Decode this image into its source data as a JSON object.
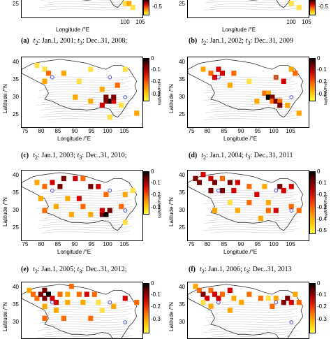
{
  "figure": {
    "xlabel": "Longitude /°E",
    "ylabel": "Latitude /°N",
    "colorbar_label": "log(MPi/MPref)",
    "top_strip_colorbar_ticks": [
      "-0.5"
    ],
    "top_strip_colorbar_ticks_right": [
      "-0.5"
    ],
    "colorbar_ticks_full": [
      "0",
      "-0.1",
      "-0.2",
      "-0.3",
      "-0.4",
      "-0.5"
    ],
    "colorbar_ticks_partial": [
      "0",
      "-0.1",
      "-0.2",
      "-0.3"
    ],
    "x_ticks": [
      "75",
      "80",
      "85",
      "90",
      "95",
      "100",
      "105"
    ],
    "y_ticks": [
      "40",
      "35",
      "30",
      "25"
    ],
    "y_ticks_partial": [
      "40",
      "35",
      "30"
    ],
    "top_y_tick": "25",
    "top_x_ticks": [
      "100",
      "105"
    ],
    "colors": {
      "dark": "#000000",
      "darkred": "#7a0000",
      "red": "#d40000",
      "orange": "#ff6a00",
      "yelloworange": "#ffa800",
      "yellow": "#ffe14a",
      "station": "#3a3ad0"
    }
  },
  "captions": [
    {
      "label": "(a)",
      "t2": "t",
      "t2sub": "2",
      "t2text": ": Jan.1, 2001;",
      "t3": "t",
      "t3sub": "3",
      "t3text": ": Dec..31, 2008;"
    },
    {
      "label": "(b)",
      "t2": "t",
      "t2sub": "2",
      "t2text": ": Jan.1, 2002;",
      "t3": "t",
      "t3sub": "3",
      "t3text": ": Dec..31, 2009"
    },
    {
      "label": "(c)",
      "t2": "t",
      "t2sub": "2",
      "t2text": ": Jan.1, 2003;",
      "t3": "t",
      "t3sub": "3",
      "t3text": ": Dec..31, 2010;"
    },
    {
      "label": "(d)",
      "t2": "t",
      "t2sub": "2",
      "t2text": ": Jan.1, 2004;",
      "t3": "t",
      "t3sub": "3",
      "t3text": ": Dec..31, 2011"
    },
    {
      "label": "(e)",
      "t2": "t",
      "t2sub": "2",
      "t2text": ": Jan.1, 2005;",
      "t3": "t",
      "t3sub": "3",
      "t3text": ": Dec..31, 2012;"
    },
    {
      "label": "(f)",
      "t2": "t",
      "t2sub": "2",
      "t2text": ": Jan.1, 2006;",
      "t3": "t",
      "t3sub": "3",
      "t3text": ": Dec..31, 2013"
    }
  ],
  "chart_data": [
    {
      "type": "heatmap",
      "panel": "c",
      "cells": [
        [
          78,
          39,
          -0.45
        ],
        [
          80,
          38,
          -0.5
        ],
        [
          81,
          37,
          -0.3
        ],
        [
          85,
          37,
          -0.4
        ],
        [
          92,
          38,
          -0.45
        ],
        [
          101,
          38,
          -0.5
        ],
        [
          89,
          35,
          -0.5
        ],
        [
          95,
          33,
          -0.4
        ],
        [
          96,
          31,
          -0.1
        ],
        [
          97,
          30,
          0
        ],
        [
          96,
          30,
          -0.05
        ],
        [
          98,
          30,
          -0.15
        ],
        [
          98,
          31,
          -0.05
        ],
        [
          95,
          29,
          -0.2
        ],
        [
          92,
          30,
          -0.35
        ],
        [
          104,
          27,
          -0.4
        ],
        [
          100,
          29,
          -0.45
        ],
        [
          88,
          31,
          -0.4
        ],
        [
          99,
          34,
          -0.3
        ],
        [
          80,
          35,
          -0.35
        ],
        [
          97,
          26,
          -0.5
        ]
      ],
      "stations": [
        [
          82,
          36
        ],
        [
          97,
          36
        ],
        [
          101,
          31
        ]
      ]
    },
    {
      "type": "heatmap",
      "panel": "d",
      "cells": [
        [
          78,
          38,
          -0.35
        ],
        [
          80,
          37,
          -0.3
        ],
        [
          82,
          38,
          -0.15
        ],
        [
          83,
          37,
          -0.2
        ],
        [
          86,
          37,
          -0.3
        ],
        [
          81,
          36,
          -0.2
        ],
        [
          85,
          34,
          -0.4
        ],
        [
          90,
          35,
          -0.5
        ],
        [
          94,
          32,
          -0.3
        ],
        [
          95,
          32,
          -0.35
        ],
        [
          95,
          31,
          0
        ],
        [
          96,
          31,
          -0.1
        ],
        [
          96,
          30,
          -0.25
        ],
        [
          97,
          30,
          -0.05
        ],
        [
          98,
          30,
          -0.3
        ],
        [
          98,
          29,
          -0.1
        ],
        [
          101,
          38,
          -0.4
        ],
        [
          102,
          37,
          -0.3
        ],
        [
          99,
          35,
          -0.15
        ],
        [
          97,
          36,
          -0.25
        ],
        [
          100,
          29,
          -0.4
        ],
        [
          103,
          27,
          -0.35
        ],
        [
          92,
          30,
          -0.4
        ]
      ],
      "stations": [
        [
          82,
          36
        ],
        [
          97,
          36
        ],
        [
          101,
          31
        ]
      ]
    },
    {
      "type": "heatmap",
      "panel": "e",
      "cells": [
        [
          78,
          38,
          -0.4
        ],
        [
          80,
          37,
          -0.25
        ],
        [
          82,
          38,
          -0.2
        ],
        [
          84,
          37,
          -0.05
        ],
        [
          85,
          39,
          -0.1
        ],
        [
          88,
          39,
          -0.2
        ],
        [
          90,
          39,
          -0.3
        ],
        [
          92,
          37,
          -0.1
        ],
        [
          94,
          37,
          -0.2
        ],
        [
          96,
          35,
          -0.3
        ],
        [
          86,
          34,
          -0.35
        ],
        [
          89,
          34,
          -0.2
        ],
        [
          80,
          31,
          -0.3
        ],
        [
          83,
          32,
          -0.4
        ],
        [
          90,
          32,
          -0.3
        ],
        [
          95,
          30,
          -0.1
        ],
        [
          96,
          30,
          0
        ],
        [
          97,
          31,
          -0.05
        ],
        [
          95,
          31,
          -0.2
        ],
        [
          101,
          35,
          -0.4
        ],
        [
          103,
          36,
          -0.5
        ],
        [
          100,
          32,
          -0.3
        ],
        [
          101,
          28,
          -0.45
        ],
        [
          87,
          30,
          -0.35
        ],
        [
          79,
          34,
          -0.4
        ],
        [
          92,
          30,
          -0.35
        ]
      ],
      "stations": [
        [
          82,
          36
        ],
        [
          97,
          36
        ],
        [
          101,
          31
        ]
      ]
    },
    {
      "type": "heatmap",
      "panel": "f",
      "cells": [
        [
          76,
          39,
          -0.05
        ],
        [
          77,
          38,
          -0.1
        ],
        [
          78,
          40,
          -0.2
        ],
        [
          80,
          39,
          -0.2
        ],
        [
          81,
          38,
          -0.1
        ],
        [
          83,
          39,
          -0.3
        ],
        [
          85,
          38,
          -0.05
        ],
        [
          87,
          38,
          -0.15
        ],
        [
          80,
          36,
          -0.1
        ],
        [
          83,
          36,
          -0.05
        ],
        [
          86,
          36,
          -0.2
        ],
        [
          90,
          37,
          -0.3
        ],
        [
          92,
          35,
          -0.2
        ],
        [
          94,
          37,
          -0.4
        ],
        [
          98,
          37,
          -0.1
        ],
        [
          99,
          36,
          -0.2
        ],
        [
          101,
          37,
          -0.15
        ],
        [
          95,
          33,
          -0.35
        ],
        [
          90,
          33,
          -0.3
        ],
        [
          85,
          33,
          -0.45
        ],
        [
          95,
          31,
          -0.3
        ],
        [
          97,
          31,
          -0.2
        ],
        [
          101,
          32,
          -0.25
        ],
        [
          81,
          31,
          -0.35
        ],
        [
          87,
          31,
          -0.4
        ],
        [
          93,
          29,
          -0.35
        ],
        [
          103,
          31,
          -0.25
        ]
      ],
      "stations": [
        [
          82,
          36
        ],
        [
          97,
          36
        ],
        [
          101,
          31
        ]
      ]
    },
    {
      "type": "heatmap",
      "panel": "g",
      "cells": [
        [
          76,
          39,
          -0.4
        ],
        [
          77,
          38,
          -0.3
        ],
        [
          78,
          37,
          -0.3
        ],
        [
          79,
          38,
          -0.1
        ],
        [
          80,
          39,
          -0.05
        ],
        [
          81,
          38,
          0
        ],
        [
          80,
          37,
          -0.1
        ],
        [
          82,
          37,
          -0.2
        ],
        [
          83,
          36,
          -0.2
        ],
        [
          84,
          38,
          -0.3
        ],
        [
          86,
          38,
          -0.4
        ],
        [
          87,
          40,
          -0.3
        ],
        [
          89,
          38,
          -0.25
        ],
        [
          91,
          38,
          -0.2
        ],
        [
          93,
          38,
          -0.3
        ],
        [
          86,
          36,
          -0.35
        ],
        [
          80,
          35,
          -0.35
        ],
        [
          83,
          34,
          -0.4
        ],
        [
          90,
          36,
          -0.4
        ],
        [
          94,
          36,
          -0.45
        ],
        [
          95,
          34,
          -0.45
        ],
        [
          80,
          32,
          -0.3
        ],
        [
          85,
          32,
          -0.3
        ],
        [
          92,
          32,
          -0.3
        ],
        [
          98,
          35,
          -0.35
        ],
        [
          101,
          37,
          -0.2
        ],
        [
          104,
          36,
          -0.3
        ]
      ],
      "stations": [
        [
          82,
          36
        ],
        [
          97,
          36
        ],
        [
          101,
          31
        ]
      ]
    },
    {
      "type": "heatmap",
      "panel": "h",
      "cells": [
        [
          76,
          40,
          -0.4
        ],
        [
          77,
          39,
          -0.3
        ],
        [
          78,
          38,
          -0.1
        ],
        [
          79,
          37,
          -0.2
        ],
        [
          80,
          39,
          -0.3
        ],
        [
          81,
          38,
          -0.15
        ],
        [
          82,
          37,
          -0.2
        ],
        [
          78,
          36,
          -0.45
        ],
        [
          80,
          35,
          -0.35
        ],
        [
          83,
          38,
          -0.25
        ],
        [
          85,
          39,
          -0.2
        ],
        [
          86,
          37,
          -0.35
        ],
        [
          88,
          36,
          -0.4
        ],
        [
          90,
          38,
          -0.3
        ],
        [
          93,
          37,
          -0.3
        ],
        [
          95,
          37,
          -0.45
        ],
        [
          97,
          37,
          -0.4
        ],
        [
          99,
          36,
          -0.05
        ],
        [
          100,
          37,
          -0.1
        ],
        [
          101,
          36,
          -0.2
        ],
        [
          96,
          35,
          -0.3
        ],
        [
          102,
          38,
          -0.35
        ],
        [
          103,
          36,
          -0.25
        ],
        [
          85,
          34,
          -0.4
        ]
      ],
      "stations": [
        [
          82,
          36
        ],
        [
          97,
          36
        ],
        [
          101,
          31
        ]
      ]
    }
  ]
}
